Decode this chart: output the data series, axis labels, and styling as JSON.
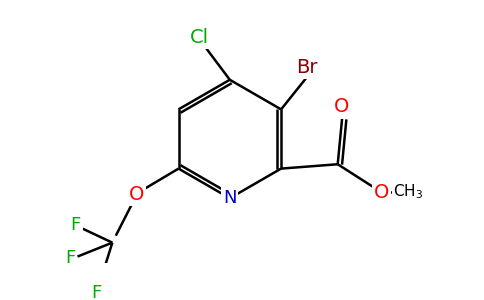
{
  "bg_color": "#ffffff",
  "bond_color": "#000000",
  "atom_colors": {
    "N": "#0000cc",
    "O": "#ff0000",
    "Cl": "#00aa00",
    "Br": "#8b0000",
    "F": "#00aa00",
    "C": "#000000"
  }
}
